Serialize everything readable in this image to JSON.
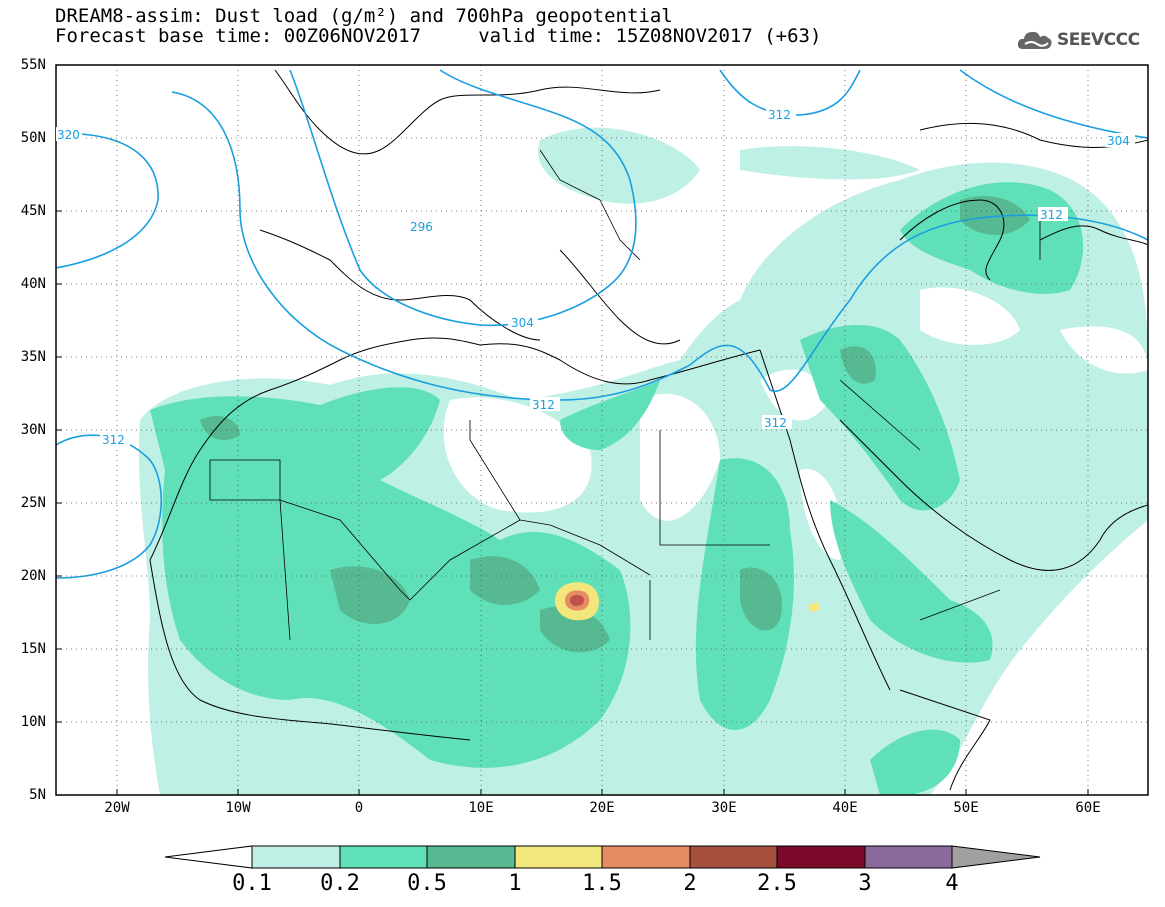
{
  "title": {
    "line1": "DREAM8-assim: Dust load (g/m²) and 700hPa geopotential",
    "line2": "Forecast base time: 00Z06NOV2017     valid time: 15Z08NOV2017 (+63)"
  },
  "logo": {
    "text": "SEEVCCC",
    "icon": "cloud-icon"
  },
  "axes": {
    "lat_labels": [
      "55N",
      "50N",
      "45N",
      "40N",
      "35N",
      "30N",
      "25N",
      "20N",
      "15N",
      "10N",
      "5N"
    ],
    "lon_labels": [
      "20W",
      "10W",
      "0",
      "10E",
      "20E",
      "30E",
      "40E",
      "50E",
      "60E"
    ],
    "lat_range": [
      5,
      55
    ],
    "lon_range": [
      -25,
      65
    ],
    "grid": "dotted"
  },
  "contours": {
    "variable": "700hPa geopotential",
    "labels": [
      "320",
      "296",
      "304",
      "312",
      "312",
      "312",
      "312",
      "304",
      "312"
    ]
  },
  "colorbar": {
    "tick_labels": [
      "0.1",
      "0.2",
      "0.5",
      "1",
      "1.5",
      "2",
      "2.5",
      "3",
      "4"
    ],
    "colors": [
      "#ffffff",
      "#bff0e6",
      "#5fe0b9",
      "#56b992",
      "#f2e67c",
      "#e58c63",
      "#a6513e",
      "#7b0a2a",
      "#8a6a9d",
      "#a0a0a0"
    ]
  },
  "dust_colors": {
    "level1": "#bff0e6",
    "level2": "#5fe0b9",
    "level3": "#56b992",
    "level4": "#f2e67c",
    "level5": "#e58c63",
    "level6": "#c0504a"
  },
  "contour_color": "#1a9fe0"
}
